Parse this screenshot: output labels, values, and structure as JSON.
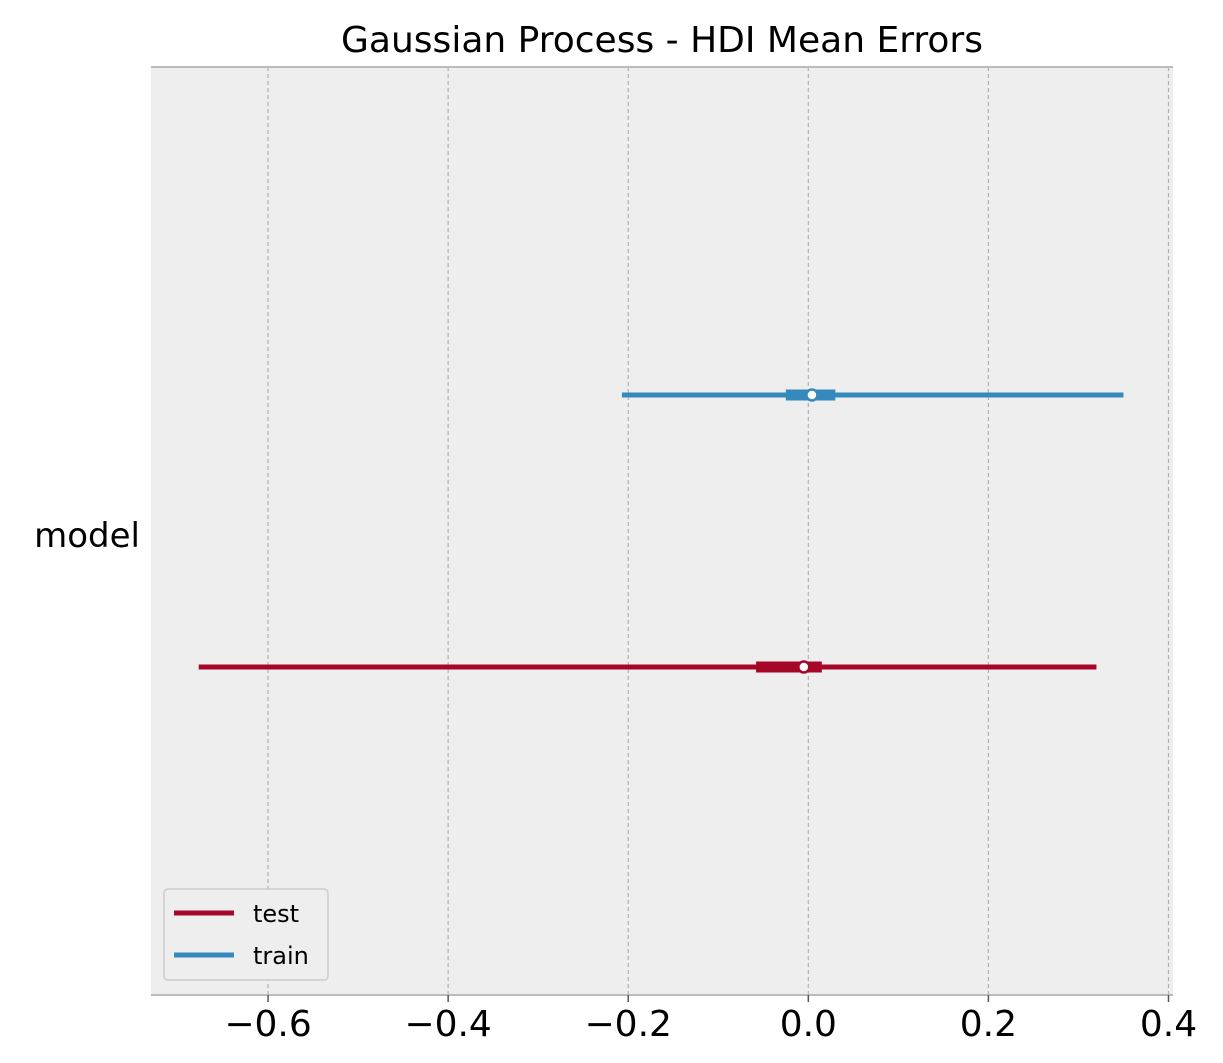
{
  "chart_data": {
    "type": "forest",
    "title": "Gaussian Process - HDI Mean Errors",
    "xlabel": "",
    "ylabel": "",
    "xlim": [
      -0.73,
      0.405
    ],
    "xticks": [
      -0.6,
      -0.4,
      -0.2,
      0.0,
      0.2,
      0.4
    ],
    "xtick_labels": [
      "−0.6",
      "−0.4",
      "−0.2",
      "0.0",
      "0.2",
      "0.4"
    ],
    "y_category": "model",
    "grid": "x-dashed",
    "legend_position": "lower-left",
    "series": [
      {
        "name": "train",
        "color": "#348abd",
        "point": 0.004,
        "hdi_outer": [
          -0.207,
          0.35
        ],
        "hdi_inner": [
          -0.025,
          0.03
        ]
      },
      {
        "name": "test",
        "color": "#a60628",
        "point": -0.005,
        "hdi_outer": [
          -0.677,
          0.32
        ],
        "hdi_inner": [
          -0.058,
          0.015
        ]
      }
    ],
    "legend": [
      {
        "label": "test",
        "color": "#a60628"
      },
      {
        "label": "train",
        "color": "#348abd"
      }
    ]
  }
}
